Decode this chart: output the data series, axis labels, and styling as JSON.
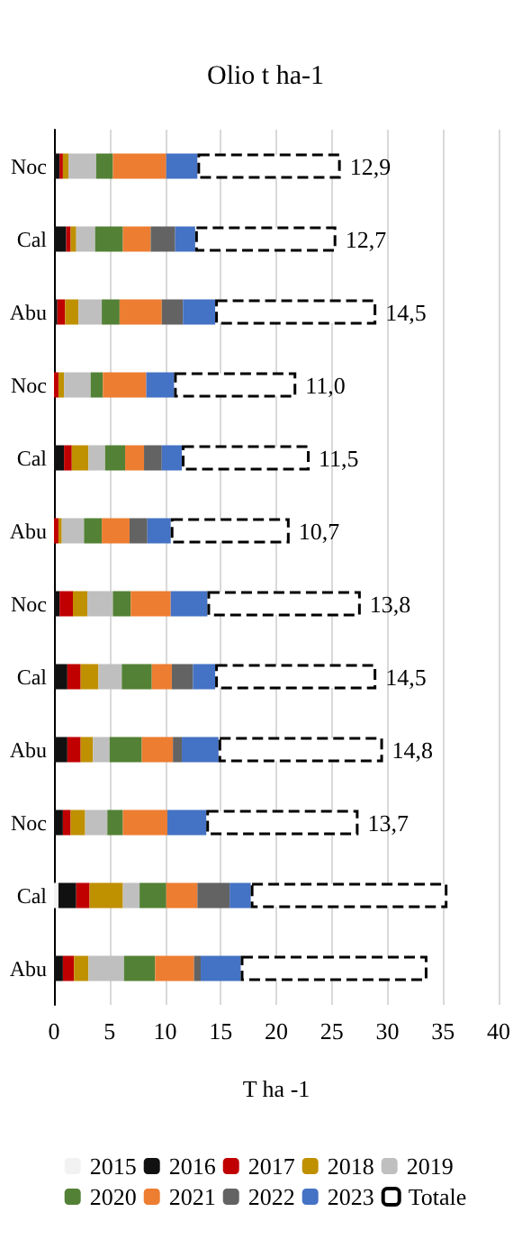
{
  "chart_data": {
    "type": "bar",
    "orientation": "horizontal",
    "stacked": true,
    "title": "Olio t ha-1",
    "xlabel": "T ha -1",
    "categories": [
      "Noc",
      "Cal",
      "Abu",
      "Noc",
      "Cal",
      "Abu",
      "Noc",
      "Cal",
      "Abu",
      "Noc",
      "Cal",
      "Abu"
    ],
    "series": [
      {
        "name": "2015",
        "color": "#f2f2f2",
        "values": [
          0,
          0,
          0,
          0,
          0,
          0,
          0,
          0,
          0,
          0,
          0.4,
          0
        ]
      },
      {
        "name": "2016",
        "color": "#111111",
        "values": [
          0.5,
          1.1,
          0.3,
          null,
          0.9,
          null,
          0.5,
          1.2,
          1.2,
          0.8,
          1.6,
          0.8
        ]
      },
      {
        "name": "2017",
        "color": "#c00000",
        "values": [
          0.3,
          0.4,
          0.7,
          0.4,
          0.7,
          0.4,
          1.2,
          1.2,
          1.2,
          0.7,
          1.2,
          1.0
        ]
      },
      {
        "name": "2018",
        "color": "#bf9000",
        "values": [
          0.5,
          0.5,
          1.2,
          0.5,
          1.5,
          0.3,
          1.3,
          1.6,
          1.1,
          1.3,
          3.0,
          1.3
        ]
      },
      {
        "name": "2019",
        "color": "#bfbfbf",
        "values": [
          2.5,
          1.7,
          2.1,
          2.4,
          1.5,
          2.0,
          2.3,
          2.1,
          1.5,
          2.0,
          1.5,
          3.2
        ]
      },
      {
        "name": "2020",
        "color": "#538135",
        "values": [
          1.5,
          2.5,
          1.6,
          1.1,
          1.8,
          1.6,
          1.6,
          2.7,
          2.9,
          1.4,
          2.4,
          2.8
        ]
      },
      {
        "name": "2021",
        "color": "#ed7d31",
        "values": [
          4.8,
          2.5,
          3.8,
          3.9,
          1.7,
          2.5,
          3.6,
          1.8,
          2.8,
          4.0,
          2.8,
          3.5
        ]
      },
      {
        "name": "2022",
        "color": "#636363",
        "values": [
          0,
          2.2,
          1.9,
          0,
          1.6,
          1.6,
          0,
          1.9,
          0.8,
          0,
          2.9,
          0.6
        ]
      },
      {
        "name": "2023",
        "color": "#4472c4",
        "values": [
          2.8,
          1.8,
          2.9,
          2.5,
          1.8,
          2.1,
          3.3,
          2.0,
          3.3,
          3.5,
          1.9,
          3.6
        ]
      },
      {
        "name": "Totale",
        "color": "#ffffff",
        "line_style": "dashed",
        "values": [
          12.9,
          12.7,
          14.5,
          11.0,
          11.5,
          10.7,
          13.8,
          14.5,
          14.8,
          13.7,
          17.7,
          16.8
        ],
        "value_labels": [
          "12,9",
          "12,7",
          "14,5",
          "11,0",
          "11,5",
          "10,7",
          "13,8",
          "14,5",
          "14,8",
          "13,7",
          null,
          null
        ]
      }
    ],
    "xlim": [
      0,
      40
    ],
    "xticks": [
      0,
      5,
      10,
      15,
      20,
      25,
      30,
      35,
      40
    ],
    "grid": "x",
    "legend": "bottom"
  }
}
